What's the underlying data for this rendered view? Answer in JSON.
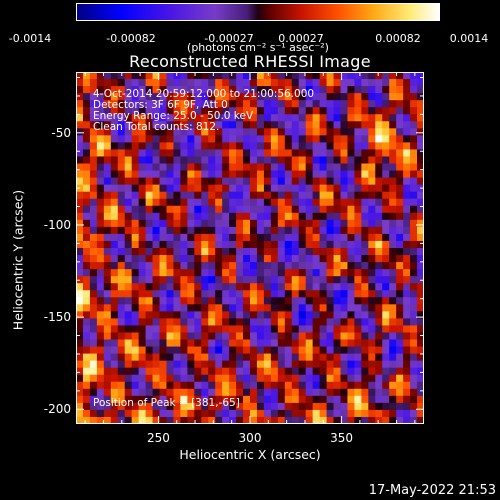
{
  "colorbar": {
    "ticks": [
      "-0.0014",
      "-0.00082",
      "-0.00027",
      "0.00027",
      "0.00082",
      "0.0014"
    ],
    "unit_label": "(photons cm⁻² s⁻¹ asec⁻²)",
    "range": [
      -0.0014,
      0.0014
    ]
  },
  "chart_data": {
    "type": "heatmap",
    "title": "Reconstructed RHESSI Image",
    "xlabel": "Heliocentric X (arcsec)",
    "ylabel": "Heliocentric Y (arcsec)",
    "xlim": [
      205,
      395
    ],
    "ylim": [
      -208,
      -17
    ],
    "xticks": [
      "250",
      "300",
      "350"
    ],
    "xtick_values": [
      250,
      300,
      350
    ],
    "yticks": [
      "-50",
      "-100",
      "-150",
      "-200"
    ],
    "ytick_values": [
      -50,
      -100,
      -150,
      -200
    ],
    "colormap": "rhessi-blue-purple-red-yellow-white",
    "peak_position": [
      381,
      -65
    ],
    "annotations": {
      "time_range": "4-Oct-2014 20:59:12.000 to 21:00:56.000",
      "detectors": "Detectors: 3F 6F 9F, Att 0",
      "energy": "Energy Range: 25.0 - 50.0 keV",
      "method": "Clean     Total counts: 812.",
      "peak": "Position of Peak = [381,-65]"
    }
  },
  "timestamp": "17-May-2022 21:53"
}
